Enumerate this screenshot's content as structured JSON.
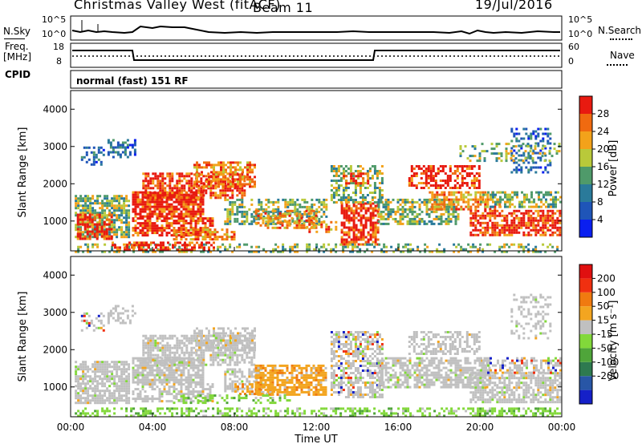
{
  "header": {
    "station": "Christmas Valley West (fitACF)",
    "beam": "Beam 11",
    "date": "19/Jul/2016"
  },
  "panels": {
    "nsky": {
      "label": "N.Sky",
      "right_label": "N.Search",
      "ticks_left": [
        "10^5",
        "10^0"
      ],
      "ticks_right": [
        "10^5",
        "10^0"
      ]
    },
    "freq": {
      "label_top": "Freq.",
      "label_bottom": "[MHz]",
      "ticks_left": [
        "18",
        "8"
      ],
      "ticks_right": [
        "60",
        "0"
      ],
      "right_label": "Nave"
    },
    "cpid": {
      "label": "CPID",
      "text": "normal (fast) 151 RF"
    }
  },
  "chart_data": [
    {
      "type": "heatmap",
      "name": "power",
      "title": "",
      "xlabel": "",
      "ylabel": "Slant Range [km]",
      "yticks": [
        "1000",
        "2000",
        "3000",
        "4000"
      ],
      "ylim": [
        200,
        4500
      ],
      "colorbar": {
        "label": "Power [dB]",
        "ticks": [
          "4",
          "8",
          "12",
          "16",
          "20",
          "24",
          "28"
        ],
        "colors": [
          "#0a1ff0",
          "#1f55b8",
          "#2a7a9a",
          "#4f9a6a",
          "#b9c93a",
          "#f3a21a",
          "#f06a10",
          "#e81a10"
        ]
      }
    },
    {
      "type": "heatmap",
      "name": "velocity",
      "title": "",
      "xlabel": "Time UT",
      "ylabel": "Slant Range [km]",
      "yticks": [
        "1000",
        "2000",
        "3000",
        "4000"
      ],
      "ylim": [
        200,
        4500
      ],
      "xticks": [
        "00:00",
        "04:00",
        "08:00",
        "12:00",
        "16:00",
        "20:00",
        "00:00"
      ],
      "colorbar": {
        "label": "Velocity [m s⁻¹]",
        "ticks": [
          "200",
          "100",
          "50",
          "15",
          "-15",
          "-50",
          "-100",
          "-200"
        ],
        "colors": [
          "#1520c8",
          "#2856a6",
          "#2e7a50",
          "#4fa53a",
          "#82d83a",
          "#c0c0c0",
          "#f3a520",
          "#f07a10",
          "#f03010",
          "#e01010"
        ]
      }
    }
  ]
}
